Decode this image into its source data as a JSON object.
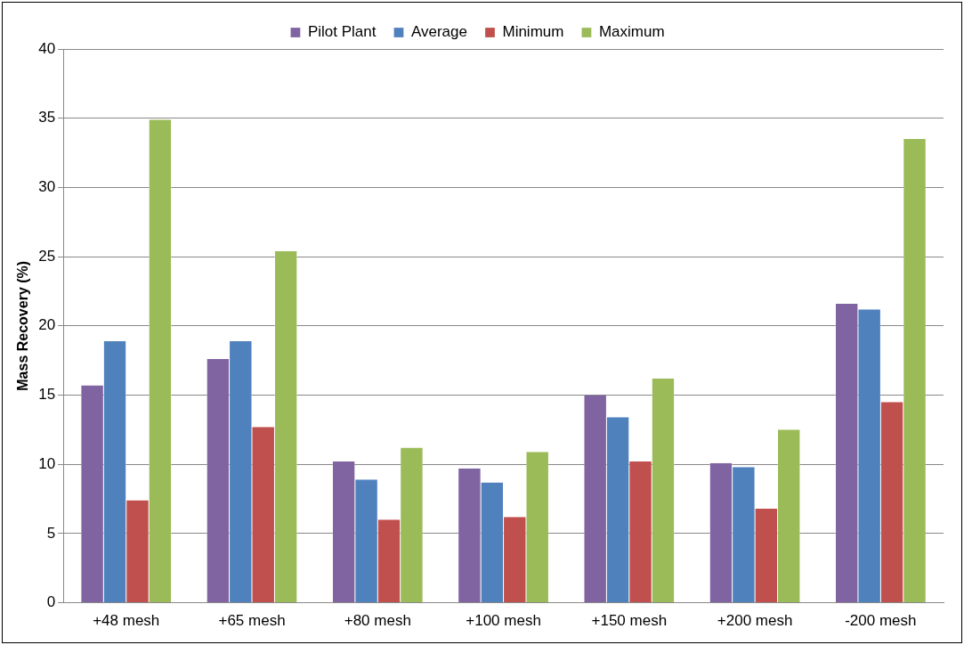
{
  "chart_data": {
    "type": "bar",
    "ylabel": "Mass Recovery (%)",
    "categories": [
      "+48 mesh",
      "+65 mesh",
      "+80 mesh",
      "+100 mesh",
      "+150 mesh",
      "+200 mesh",
      "-200 mesh"
    ],
    "series": [
      {
        "name": "Pilot Plant",
        "color": "#8064a2",
        "values": [
          15.7,
          17.6,
          10.2,
          9.7,
          15.0,
          10.1,
          21.6
        ]
      },
      {
        "name": "Average",
        "color": "#4f81bd",
        "values": [
          18.9,
          18.9,
          8.9,
          8.7,
          13.4,
          9.8,
          21.2
        ]
      },
      {
        "name": "Minimum",
        "color": "#c0504d",
        "values": [
          7.4,
          12.7,
          6.0,
          6.2,
          10.2,
          6.8,
          14.5
        ]
      },
      {
        "name": "Maximum",
        "color": "#9bbb59",
        "values": [
          34.9,
          25.4,
          11.2,
          10.9,
          16.2,
          12.5,
          33.5
        ]
      }
    ],
    "ylim": [
      0,
      40
    ],
    "yticks": [
      0,
      5,
      10,
      15,
      20,
      25,
      30,
      35,
      40
    ],
    "grid": "y",
    "legend": "top"
  }
}
